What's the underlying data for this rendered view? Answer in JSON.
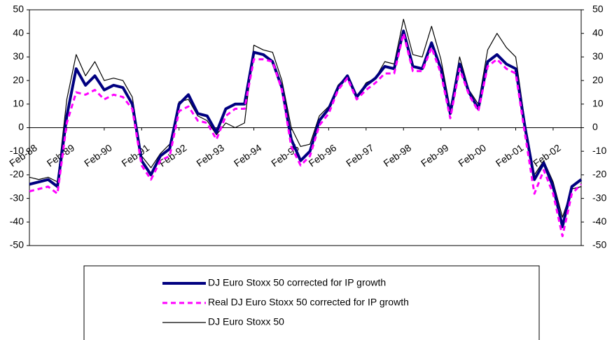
{
  "chart_data": {
    "type": "line",
    "categories": [
      "Feb-88",
      null,
      null,
      null,
      "Feb-89",
      null,
      null,
      null,
      "Feb-90",
      null,
      null,
      null,
      "Feb-91",
      null,
      null,
      null,
      "Feb-92",
      null,
      null,
      null,
      "Feb-93",
      null,
      null,
      null,
      "Feb-94",
      null,
      null,
      null,
      "Feb-95",
      null,
      null,
      null,
      "Feb-96",
      null,
      null,
      null,
      "Feb-97",
      null,
      null,
      null,
      "Feb-98",
      null,
      null,
      null,
      "Feb-99",
      null,
      null,
      null,
      "Feb-00",
      null,
      null,
      null,
      "Feb-01",
      null,
      null,
      null,
      "Feb-02",
      null,
      null,
      null
    ],
    "series": [
      {
        "name": "DJ Euro Stoxx 50 corrected for IP growth",
        "color": "#000080",
        "style": "thick",
        "values": [
          -24,
          -23,
          -22,
          -25,
          5,
          25,
          18,
          22,
          16,
          18,
          17,
          10,
          -14,
          -20,
          -12,
          -9,
          10,
          14,
          6,
          5,
          -2,
          8,
          10,
          10,
          32,
          31,
          28,
          17,
          -5,
          -14,
          -10,
          3,
          8,
          17,
          22,
          13,
          18,
          21,
          26,
          25,
          41,
          26,
          25,
          36,
          25,
          6,
          27,
          15,
          8,
          28,
          31,
          27,
          25,
          0,
          -22,
          -15,
          -25,
          -42,
          -25,
          -22
        ]
      },
      {
        "name": "Real DJ Euro Stoxx 50 corrected for IP growth",
        "color": "#ff00ff",
        "style": "dashed",
        "values": [
          -27,
          -26,
          -25,
          -28,
          2,
          15,
          14,
          16,
          12,
          14,
          13,
          8,
          -16,
          -22,
          -14,
          -12,
          7,
          9,
          3,
          2,
          -5,
          5,
          8,
          8,
          29,
          29,
          28,
          16,
          -8,
          -16,
          -12,
          1,
          6,
          16,
          21,
          12,
          16,
          19,
          23,
          23,
          40,
          24,
          24,
          34,
          23,
          4,
          25,
          14,
          7,
          26,
          29,
          25,
          23,
          -3,
          -28,
          -18,
          -28,
          -46,
          -28,
          -24
        ]
      },
      {
        "name": "DJ Euro Stoxx 50",
        "color": "#000000",
        "style": "thin",
        "values": [
          -21,
          -22,
          -21,
          -23,
          12,
          31,
          22,
          28,
          20,
          21,
          20,
          13,
          -12,
          -17,
          -11,
          -7,
          11,
          12,
          5,
          3,
          -3,
          2,
          0,
          2,
          35,
          33,
          32,
          20,
          0,
          -8,
          -7,
          5,
          9,
          18,
          22,
          13,
          19,
          21,
          28,
          27,
          46,
          31,
          30,
          43,
          29,
          8,
          30,
          16,
          10,
          33,
          40,
          34,
          30,
          2,
          -20,
          -14,
          -23,
          -38,
          -26,
          -25
        ]
      }
    ],
    "ylim": [
      -50,
      50
    ],
    "yticks": [
      -50,
      -40,
      -30,
      -20,
      -10,
      0,
      10,
      20,
      30,
      40,
      50
    ]
  }
}
